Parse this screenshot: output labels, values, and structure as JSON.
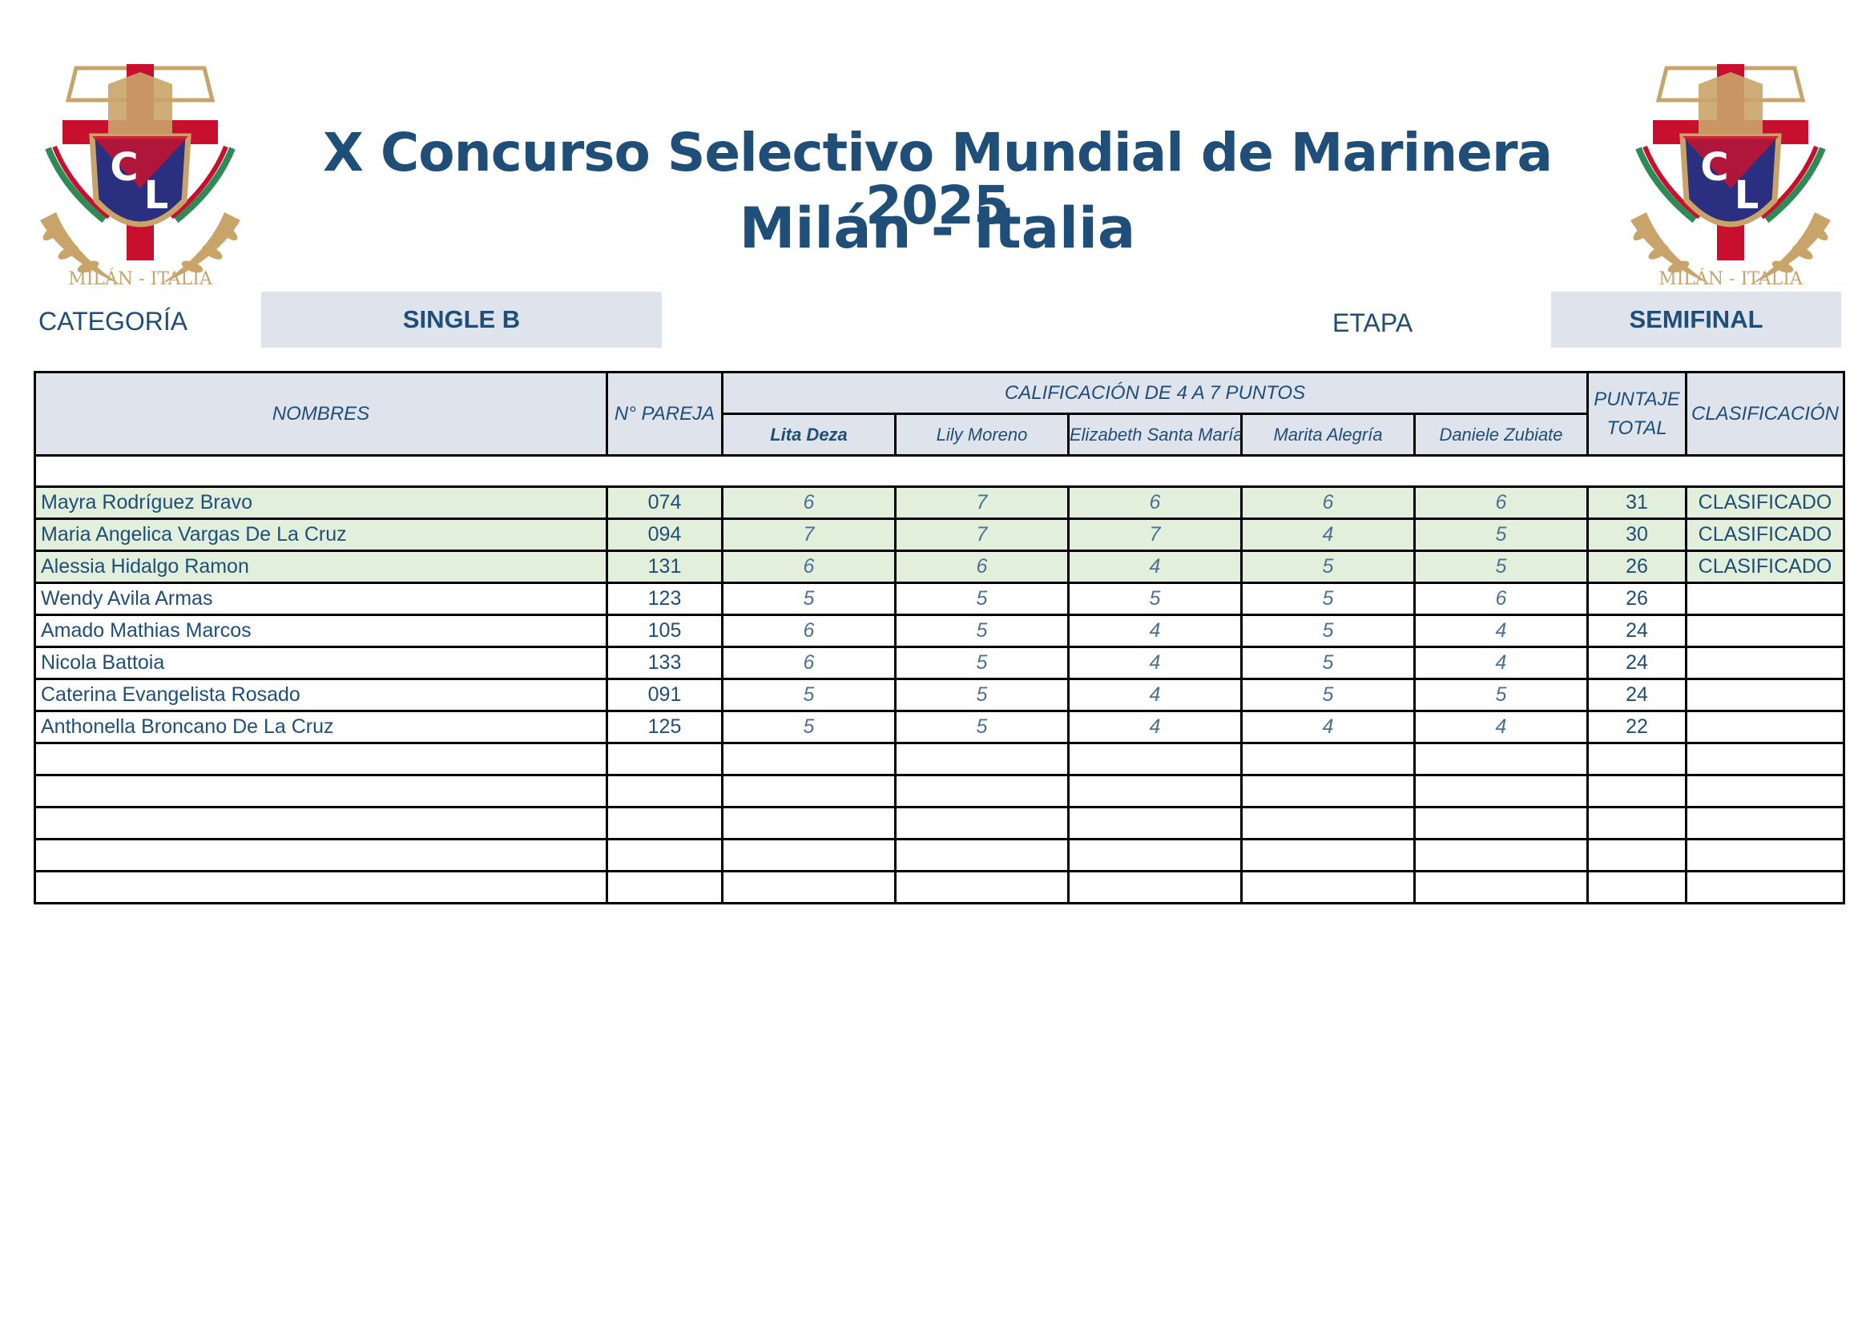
{
  "header": {
    "title": "X Concurso Selectivo Mundial de Marinera 2025",
    "subtitle": "Milán - Italia",
    "logo_text": "MILÁN - ITALIA",
    "logo_letters": [
      "C",
      "L"
    ]
  },
  "meta": {
    "categoria_label": "CATEGORÍA",
    "categoria_value": "SINGLE B",
    "etapa_label": "ETAPA",
    "etapa_value": "SEMIFINAL"
  },
  "table": {
    "col_nombres": "NOMBRES",
    "col_pareja": "N° PAREJA",
    "col_calificacion": "CALIFICACIÓN DE 4 A 7 PUNTOS",
    "col_puntaje": "PUNTAJE TOTAL",
    "col_clasificacion": "CLASIFICACIÓN",
    "judges": [
      "Lita Deza",
      "Lily Moreno",
      "Elizabeth Santa María",
      "Marita Alegría",
      "Daniele Zubiate"
    ],
    "rows": [
      {
        "name": "Mayra Rodríguez Bravo",
        "pareja": "074",
        "scores": [
          "6",
          "7",
          "6",
          "6",
          "6"
        ],
        "total": "31",
        "status": "CLASIFICADO",
        "highlight": true
      },
      {
        "name": "Maria Angelica Vargas De La Cruz",
        "pareja": "094",
        "scores": [
          "7",
          "7",
          "7",
          "4",
          "5"
        ],
        "total": "30",
        "status": "CLASIFICADO",
        "highlight": true
      },
      {
        "name": "Alessia Hidalgo Ramon",
        "pareja": "131",
        "scores": [
          "6",
          "6",
          "4",
          "5",
          "5"
        ],
        "total": "26",
        "status": "CLASIFICADO",
        "highlight": true
      },
      {
        "name": "Wendy Avila Armas",
        "pareja": "123",
        "scores": [
          "5",
          "5",
          "5",
          "5",
          "6"
        ],
        "total": "26",
        "status": "",
        "highlight": false
      },
      {
        "name": "Amado Mathias Marcos",
        "pareja": "105",
        "scores": [
          "6",
          "5",
          "4",
          "5",
          "4"
        ],
        "total": "24",
        "status": "",
        "highlight": false
      },
      {
        "name": "Nicola Battoia",
        "pareja": "133",
        "scores": [
          "6",
          "5",
          "4",
          "5",
          "4"
        ],
        "total": "24",
        "status": "",
        "highlight": false
      },
      {
        "name": "Caterina Evangelista Rosado",
        "pareja": "091",
        "scores": [
          "5",
          "5",
          "4",
          "5",
          "5"
        ],
        "total": "24",
        "status": "",
        "highlight": false
      },
      {
        "name": "Anthonella Broncano De La Cruz",
        "pareja": "125",
        "scores": [
          "5",
          "5",
          "4",
          "4",
          "4"
        ],
        "total": "22",
        "status": "",
        "highlight": false
      },
      {
        "name": "",
        "pareja": "",
        "scores": [
          "",
          "",
          "",
          "",
          ""
        ],
        "total": "",
        "status": "",
        "highlight": false
      },
      {
        "name": "",
        "pareja": "",
        "scores": [
          "",
          "",
          "",
          "",
          ""
        ],
        "total": "",
        "status": "",
        "highlight": false
      },
      {
        "name": "",
        "pareja": "",
        "scores": [
          "",
          "",
          "",
          "",
          ""
        ],
        "total": "",
        "status": "",
        "highlight": false
      },
      {
        "name": "",
        "pareja": "",
        "scores": [
          "",
          "",
          "",
          "",
          ""
        ],
        "total": "",
        "status": "",
        "highlight": false
      },
      {
        "name": "",
        "pareja": "",
        "scores": [
          "",
          "",
          "",
          "",
          ""
        ],
        "total": "",
        "status": "",
        "highlight": false
      }
    ]
  },
  "colors": {
    "primary": "#1f4e79",
    "header_fill": "#dee3ec",
    "highlight_fill": "#e2efda",
    "crest_red": "#c8102e",
    "crest_navy": "#2b2f7f",
    "crest_gold": "#c9a46a",
    "ribbon_green": "#2e8b57"
  }
}
